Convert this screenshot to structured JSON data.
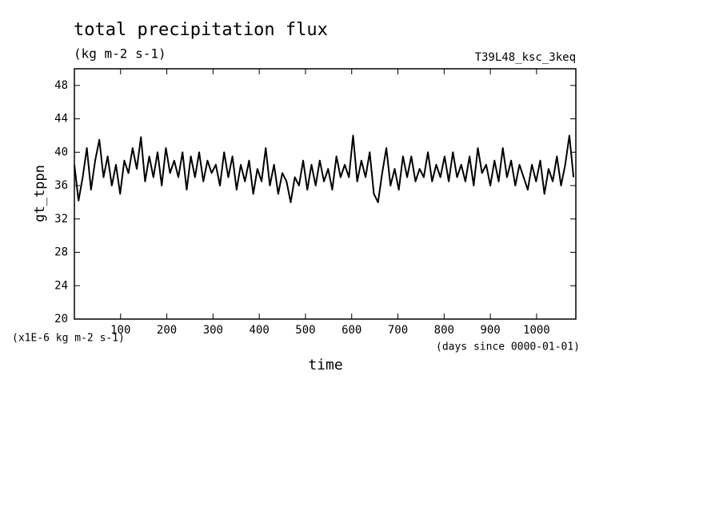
{
  "chart_data": {
    "type": "line",
    "title": "total precipitation flux",
    "subtitle": "(kg m-2 s-1)",
    "run_label": "T39L48_ksc_3keq",
    "y_label": "gt_tppn",
    "y_unit_note": "(x1E-6 kg m-2 s-1)",
    "x_label": "time",
    "x_unit_note": "(days since 0000-01-01)",
    "xlim": [
      0,
      1085
    ],
    "ylim": [
      20,
      50
    ],
    "xticks": [
      100,
      200,
      300,
      400,
      500,
      600,
      700,
      800,
      900,
      1000
    ],
    "yticks": [
      20,
      24,
      28,
      32,
      36,
      40,
      44,
      48
    ],
    "grid": false,
    "series": [
      {
        "color": "#000000",
        "x": [
          0,
          9,
          18,
          27,
          36,
          45,
          54,
          63,
          72,
          81,
          90,
          99,
          108,
          117,
          126,
          135,
          144,
          153,
          162,
          171,
          180,
          189,
          198,
          207,
          216,
          225,
          234,
          243,
          252,
          261,
          270,
          279,
          288,
          297,
          306,
          315,
          324,
          333,
          342,
          351,
          360,
          369,
          378,
          387,
          396,
          405,
          414,
          423,
          432,
          441,
          450,
          459,
          468,
          477,
          486,
          495,
          504,
          513,
          522,
          531,
          540,
          549,
          558,
          567,
          576,
          585,
          594,
          603,
          612,
          621,
          630,
          639,
          648,
          657,
          666,
          675,
          684,
          693,
          702,
          711,
          720,
          729,
          738,
          747,
          756,
          765,
          774,
          783,
          792,
          801,
          810,
          819,
          828,
          837,
          846,
          855,
          864,
          873,
          882,
          891,
          900,
          909,
          918,
          927,
          936,
          945,
          954,
          963,
          972,
          981,
          990,
          999,
          1008,
          1017,
          1026,
          1035,
          1044,
          1053,
          1062,
          1071,
          1080
        ],
        "values": [
          38.5,
          34.2,
          37,
          40.5,
          35.5,
          39,
          41.5,
          37,
          39.5,
          36,
          38.5,
          35,
          39,
          37.5,
          40.5,
          38,
          41.8,
          36.5,
          39.5,
          37,
          40,
          36,
          40.5,
          37.5,
          39,
          37,
          40,
          35.5,
          39.5,
          37,
          40,
          36.5,
          39,
          37.5,
          38.5,
          36,
          40,
          37,
          39.5,
          35.5,
          38.5,
          36.5,
          39,
          35,
          38,
          36.5,
          40.5,
          36,
          38.5,
          35,
          37.5,
          36.5,
          34,
          37,
          36,
          39,
          35.5,
          38.5,
          36,
          39,
          36.5,
          38,
          35.5,
          39.5,
          37,
          38.5,
          37,
          42,
          36.5,
          39,
          37,
          40,
          35,
          34,
          37.5,
          40.5,
          36,
          38,
          35.5,
          39.5,
          37,
          39.5,
          36.5,
          38,
          37,
          40,
          36.5,
          38.5,
          37,
          39.5,
          36.5,
          40,
          37,
          38.5,
          36.5,
          39.5,
          36,
          40.5,
          37.5,
          38.5,
          36,
          39,
          36.5,
          40.5,
          37,
          39,
          36,
          38.5,
          37,
          35.5,
          38.5,
          36.5,
          39,
          35,
          38,
          36.5,
          39.5,
          36,
          38.5,
          42,
          37
        ]
      }
    ]
  }
}
